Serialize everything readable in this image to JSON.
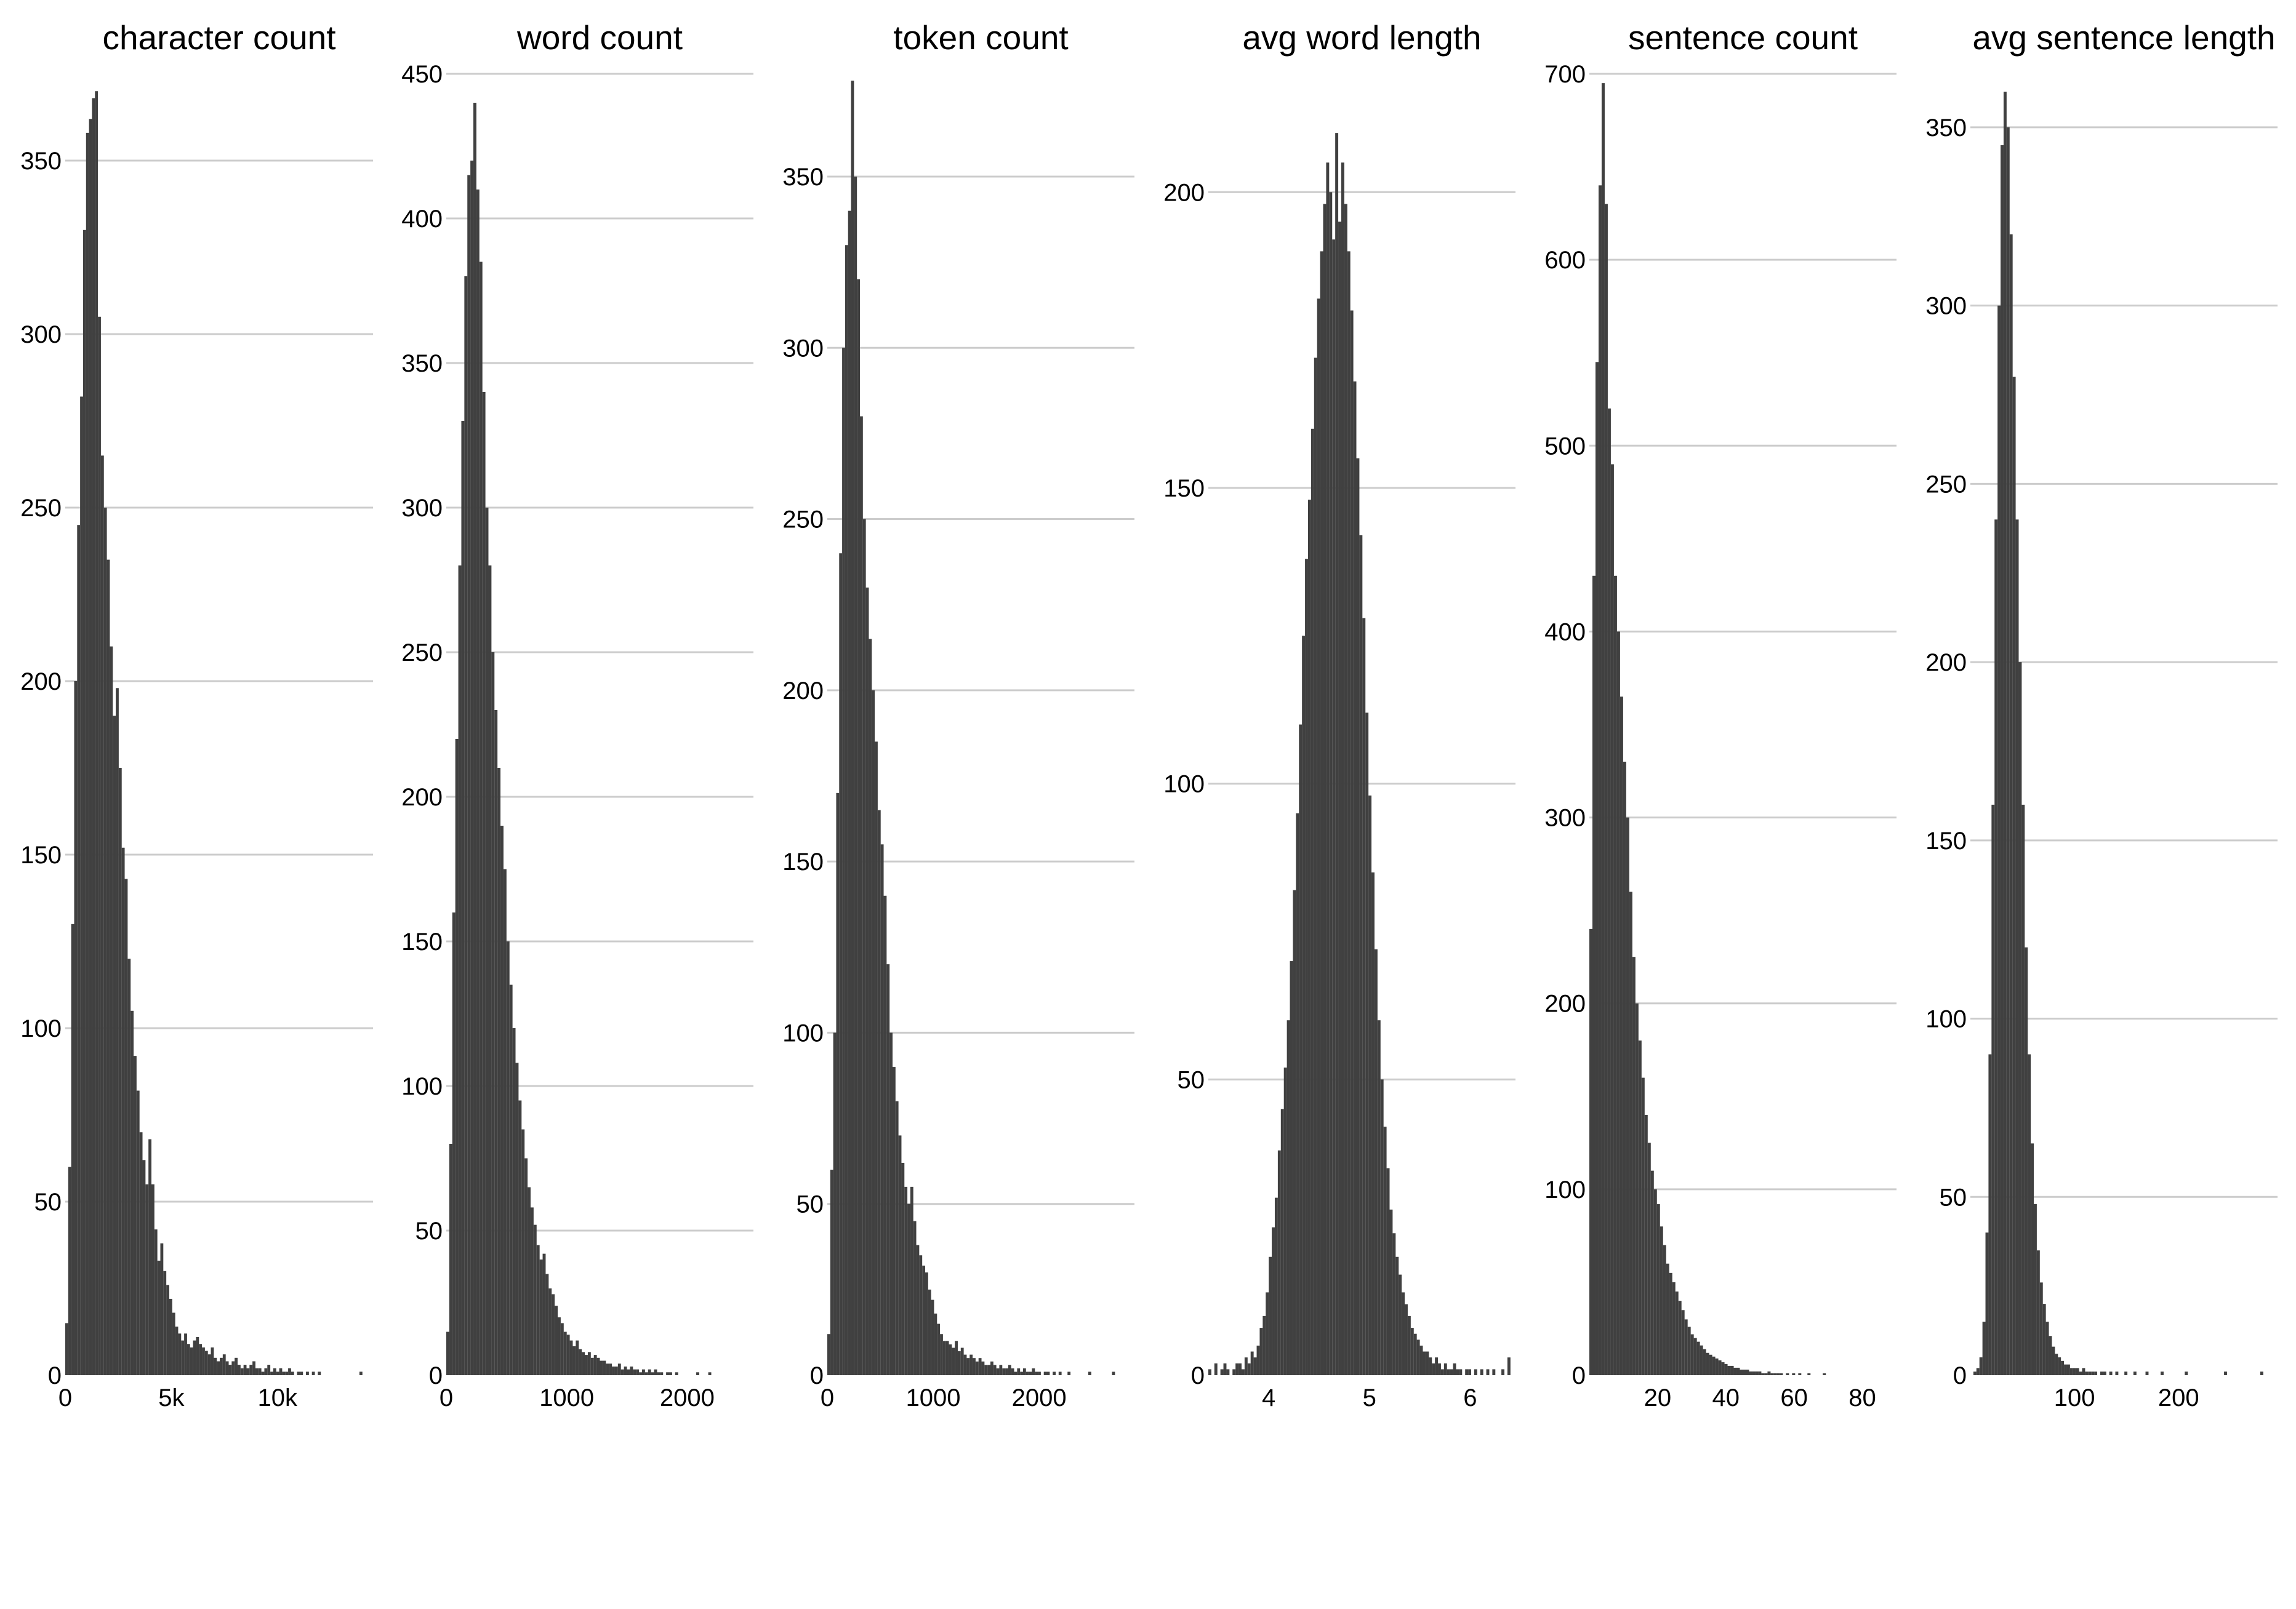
{
  "style": {
    "bar_color": "#404040",
    "grid_color": "#cccccc",
    "background": "#ffffff"
  },
  "chart_data": [
    {
      "type": "bar",
      "title": "character count",
      "xlabel": "",
      "ylabel": "",
      "grid": "horizontal",
      "xlim": [
        0,
        14500
      ],
      "ylim": [
        0,
        375
      ],
      "x_ticks": [
        {
          "value": 0,
          "label": "0"
        },
        {
          "value": 5000,
          "label": "5k"
        },
        {
          "value": 10000,
          "label": "10k"
        }
      ],
      "y_ticks": [
        0,
        50,
        100,
        150,
        200,
        250,
        300,
        350
      ],
      "bin_edges": [
        0,
        14000
      ],
      "values": [
        15,
        60,
        130,
        200,
        245,
        282,
        330,
        358,
        362,
        368,
        370,
        305,
        265,
        250,
        235,
        210,
        190,
        198,
        175,
        152,
        143,
        120,
        105,
        92,
        82,
        70,
        62,
        55,
        68,
        55,
        42,
        33,
        38,
        30,
        26,
        22,
        18,
        14,
        12,
        10,
        12,
        9,
        8,
        10,
        11,
        9,
        8,
        7,
        6,
        8,
        5,
        4,
        5,
        6,
        4,
        3,
        4,
        5,
        3,
        2,
        3,
        2,
        3,
        4,
        2,
        2,
        1,
        2,
        3,
        1,
        2,
        1,
        2,
        1,
        1,
        2,
        1,
        0,
        1,
        1,
        0,
        1,
        0,
        1,
        0,
        1,
        0,
        0,
        0,
        0,
        0,
        0,
        0,
        0,
        0,
        0,
        0,
        0,
        0,
        1
      ]
    },
    {
      "type": "bar",
      "title": "word count",
      "xlabel": "",
      "ylabel": "",
      "grid": "horizontal",
      "xlim": [
        0,
        2550
      ],
      "ylim": [
        0,
        450
      ],
      "x_ticks": [
        {
          "value": 0,
          "label": "0"
        },
        {
          "value": 1000,
          "label": "1000"
        },
        {
          "value": 2000,
          "label": "2000"
        }
      ],
      "y_ticks": [
        0,
        50,
        100,
        150,
        200,
        250,
        300,
        350,
        400,
        450
      ],
      "bin_edges": [
        0,
        2500
      ],
      "values": [
        15,
        80,
        160,
        220,
        280,
        330,
        380,
        415,
        420,
        440,
        410,
        385,
        340,
        300,
        280,
        250,
        230,
        210,
        190,
        175,
        150,
        135,
        120,
        108,
        95,
        85,
        75,
        65,
        58,
        52,
        45,
        40,
        42,
        35,
        30,
        28,
        24,
        20,
        18,
        15,
        14,
        12,
        10,
        12,
        9,
        8,
        7,
        8,
        6,
        7,
        6,
        5,
        5,
        4,
        4,
        3,
        3,
        4,
        2,
        3,
        2,
        3,
        2,
        2,
        1,
        2,
        1,
        2,
        1,
        2,
        1,
        1,
        0,
        1,
        1,
        0,
        1,
        0,
        0,
        0,
        0,
        0,
        0,
        1,
        0,
        0,
        0,
        1,
        0,
        0,
        0,
        0,
        0,
        0,
        0,
        0,
        0,
        0,
        0,
        0
      ]
    },
    {
      "type": "bar",
      "title": "token count",
      "xlabel": "",
      "ylabel": "",
      "grid": "horizontal",
      "xlim": [
        0,
        2900
      ],
      "ylim": [
        0,
        380
      ],
      "x_ticks": [
        {
          "value": 0,
          "label": "0"
        },
        {
          "value": 1000,
          "label": "1000"
        },
        {
          "value": 2000,
          "label": "2000"
        }
      ],
      "y_ticks": [
        0,
        50,
        100,
        150,
        200,
        250,
        300,
        350
      ],
      "bin_edges": [
        0,
        2800
      ],
      "values": [
        12,
        60,
        100,
        170,
        240,
        300,
        330,
        340,
        378,
        350,
        320,
        280,
        250,
        230,
        215,
        200,
        185,
        165,
        155,
        140,
        120,
        100,
        90,
        80,
        70,
        62,
        55,
        50,
        55,
        45,
        38,
        35,
        32,
        30,
        25,
        22,
        18,
        15,
        12,
        10,
        10,
        9,
        8,
        10,
        7,
        8,
        6,
        5,
        6,
        5,
        4,
        5,
        4,
        3,
        3,
        4,
        3,
        2,
        3,
        2,
        2,
        3,
        2,
        1,
        2,
        1,
        2,
        1,
        1,
        2,
        1,
        1,
        0,
        1,
        1,
        0,
        1,
        0,
        1,
        0,
        0,
        1,
        0,
        0,
        0,
        0,
        0,
        0,
        1,
        0,
        0,
        0,
        0,
        0,
        0,
        0,
        1,
        0,
        0,
        0
      ]
    },
    {
      "type": "bar",
      "title": "avg word length",
      "xlabel": "",
      "ylabel": "",
      "grid": "horizontal",
      "xlim": [
        3.4,
        6.45
      ],
      "ylim": [
        0,
        220
      ],
      "x_ticks": [
        {
          "value": 4,
          "label": "4"
        },
        {
          "value": 5,
          "label": "5"
        },
        {
          "value": 6,
          "label": "6"
        }
      ],
      "y_ticks": [
        0,
        50,
        100,
        150,
        200
      ],
      "bin_edges": [
        3.4,
        6.4
      ],
      "values": [
        1,
        0,
        2,
        0,
        1,
        2,
        1,
        0,
        1,
        2,
        2,
        1,
        3,
        2,
        4,
        3,
        5,
        8,
        10,
        14,
        20,
        25,
        30,
        38,
        45,
        52,
        60,
        70,
        82,
        95,
        110,
        125,
        138,
        148,
        160,
        172,
        182,
        190,
        198,
        205,
        200,
        192,
        210,
        195,
        205,
        198,
        190,
        180,
        168,
        155,
        142,
        128,
        112,
        98,
        85,
        72,
        60,
        50,
        42,
        35,
        28,
        24,
        20,
        17,
        14,
        12,
        10,
        8,
        7,
        6,
        5,
        4,
        4,
        3,
        2,
        3,
        2,
        1,
        2,
        1,
        1,
        2,
        1,
        1,
        0,
        1,
        1,
        0,
        1,
        0,
        1,
        0,
        1,
        0,
        1,
        0,
        0,
        1,
        0,
        3
      ]
    },
    {
      "type": "bar",
      "title": "sentence count",
      "xlabel": "",
      "ylabel": "",
      "grid": "horizontal",
      "xlim": [
        0,
        90
      ],
      "ylim": [
        0,
        700
      ],
      "x_ticks": [
        {
          "value": 20,
          "label": "20"
        },
        {
          "value": 40,
          "label": "40"
        },
        {
          "value": 60,
          "label": "60"
        },
        {
          "value": 80,
          "label": "80"
        }
      ],
      "y_ticks": [
        0,
        100,
        200,
        300,
        400,
        500,
        600,
        700
      ],
      "bin_edges": [
        0,
        90
      ],
      "values": [
        240,
        430,
        545,
        640,
        695,
        630,
        520,
        490,
        430,
        400,
        365,
        330,
        300,
        260,
        225,
        200,
        180,
        160,
        140,
        125,
        110,
        100,
        92,
        80,
        70,
        60,
        55,
        50,
        45,
        40,
        35,
        30,
        26,
        22,
        20,
        18,
        16,
        14,
        12,
        11,
        10,
        9,
        8,
        7,
        6,
        5,
        5,
        4,
        4,
        3,
        3,
        3,
        2,
        2,
        2,
        2,
        1,
        1,
        2,
        1,
        1,
        1,
        1,
        0,
        1,
        0,
        1,
        0,
        1,
        0,
        0,
        1,
        0,
        0,
        0,
        0,
        1,
        0,
        0,
        0,
        0,
        0,
        0,
        0,
        0,
        0,
        0,
        0,
        0,
        0,
        0,
        0,
        0,
        0,
        0,
        0,
        0,
        0,
        0,
        0
      ]
    },
    {
      "type": "bar",
      "title": "avg sentence length",
      "xlabel": "",
      "ylabel": "",
      "grid": "horizontal",
      "xlim": [
        0,
        295
      ],
      "ylim": [
        0,
        365
      ],
      "x_ticks": [
        {
          "value": 100,
          "label": "100"
        },
        {
          "value": 200,
          "label": "200"
        }
      ],
      "y_ticks": [
        0,
        50,
        100,
        150,
        200,
        250,
        300,
        350
      ],
      "bin_edges": [
        0,
        290
      ],
      "values": [
        0,
        1,
        2,
        5,
        15,
        40,
        90,
        160,
        240,
        300,
        345,
        360,
        350,
        320,
        280,
        240,
        200,
        160,
        120,
        90,
        65,
        48,
        35,
        26,
        20,
        15,
        11,
        8,
        6,
        5,
        4,
        3,
        3,
        2,
        2,
        2,
        1,
        2,
        1,
        1,
        1,
        1,
        0,
        1,
        1,
        0,
        1,
        0,
        1,
        0,
        0,
        1,
        0,
        0,
        1,
        0,
        0,
        0,
        1,
        0,
        0,
        0,
        0,
        1,
        0,
        0,
        0,
        0,
        0,
        0,
        0,
        1,
        0,
        0,
        0,
        0,
        0,
        0,
        0,
        0,
        0,
        0,
        0,
        0,
        1,
        0,
        0,
        0,
        0,
        0,
        0,
        0,
        0,
        0,
        0,
        0,
        1,
        0,
        0,
        0
      ]
    }
  ]
}
